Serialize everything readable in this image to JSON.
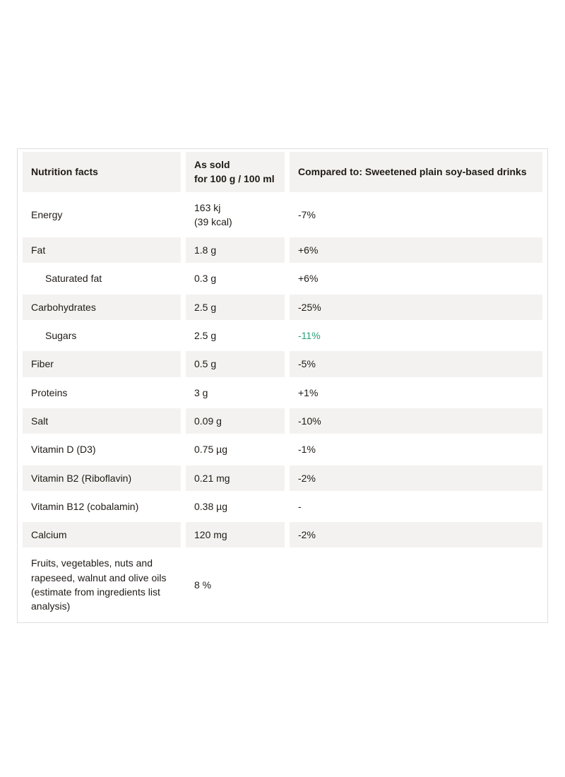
{
  "page": {
    "background": "#ffffff"
  },
  "colors": {
    "row_stripe": "#f4f2f0",
    "text": "#1f1b16",
    "table_border": "#e2dfdc",
    "comparison_better_green": "#26a17a"
  },
  "table": {
    "header": {
      "col1": "Nutrition facts",
      "col2_line1": "As sold",
      "col2_line2": "for 100 g / 100 ml",
      "col3": "Compared to: Sweetened plain soy-based drinks"
    },
    "rows": [
      {
        "nutrient": "Energy",
        "value": "163 kj",
        "value2": "(39 kcal)",
        "comparison": "-7%"
      },
      {
        "nutrient": "Fat",
        "value": "1.8 g",
        "comparison": "+6%"
      },
      {
        "nutrient": "Saturated fat",
        "value": "0.3 g",
        "comparison": "+6%",
        "indent": true
      },
      {
        "nutrient": "Carbohydrates",
        "value": "2.5 g",
        "comparison": "-25%"
      },
      {
        "nutrient": "Sugars",
        "value": "2.5 g",
        "comparison": "-11%",
        "indent": true,
        "comparison_color": "#26a17a"
      },
      {
        "nutrient": "Fiber",
        "value": "0.5 g",
        "comparison": "-5%"
      },
      {
        "nutrient": "Proteins",
        "value": "3 g",
        "comparison": "+1%"
      },
      {
        "nutrient": "Salt",
        "value": "0.09 g",
        "comparison": "-10%"
      },
      {
        "nutrient": "Vitamin D (D3)",
        "value": "0.75 µg",
        "comparison": "-1%"
      },
      {
        "nutrient": "Vitamin B2 (Riboflavin)",
        "value": "0.21 mg",
        "comparison": "-2%"
      },
      {
        "nutrient": "Vitamin B12 (cobalamin)",
        "value": "0.38 µg",
        "comparison": "-"
      },
      {
        "nutrient": "Calcium",
        "value": "120 mg",
        "comparison": "-2%"
      },
      {
        "nutrient": "Fruits, vegetables, nuts and rapeseed, walnut and olive oils (estimate from ingredients list analysis)",
        "value": "8 %",
        "comparison": ""
      }
    ]
  }
}
